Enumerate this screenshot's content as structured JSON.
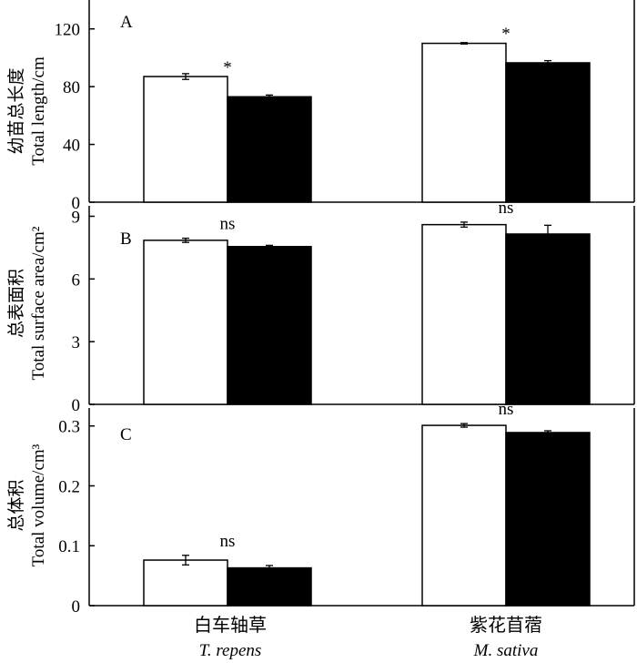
{
  "chart_data": [
    {
      "panel": "A",
      "type": "bar",
      "ylabel_cn": "幼苗总长度",
      "ylabel_en": "Total length/cm",
      "ylim": [
        0,
        140
      ],
      "yticks": [
        0,
        40,
        80,
        120
      ],
      "ytick_labels": [
        "0",
        "40",
        "80",
        "120"
      ],
      "categories": [
        "白车轴草",
        "紫花苜蓿"
      ],
      "series": [
        {
          "color": "#ffffff",
          "values": [
            87,
            110
          ],
          "errors": [
            2.0,
            0.5
          ]
        },
        {
          "color": "#000000",
          "values": [
            73,
            96.5
          ],
          "errors": [
            1.2,
            1.5
          ]
        }
      ],
      "annotations": [
        "*",
        "*"
      ]
    },
    {
      "panel": "B",
      "type": "bar",
      "ylabel_cn": "总表面积",
      "ylabel_en": "Total surface area/cm²",
      "ylim": [
        0,
        9.5
      ],
      "yticks": [
        0,
        3,
        6,
        9
      ],
      "ytick_labels": [
        "0",
        "3",
        "6",
        "9"
      ],
      "categories": [
        "白车轴草",
        "紫花苜蓿"
      ],
      "series": [
        {
          "color": "#ffffff",
          "values": [
            7.85,
            8.6
          ],
          "errors": [
            0.1,
            0.12
          ]
        },
        {
          "color": "#000000",
          "values": [
            7.55,
            8.15
          ],
          "errors": [
            0.06,
            0.42
          ]
        }
      ],
      "annotations": [
        "ns",
        "ns"
      ]
    },
    {
      "panel": "C",
      "type": "bar",
      "ylabel_cn": "总体积",
      "ylabel_en": "Total volume/cm³",
      "ylim": [
        0,
        0.33
      ],
      "yticks": [
        0,
        0.1,
        0.2,
        0.3
      ],
      "ytick_labels": [
        "0",
        "0.1",
        "0.2",
        "0.3"
      ],
      "categories": [
        "白车轴草",
        "紫花苜蓿"
      ],
      "series": [
        {
          "color": "#ffffff",
          "values": [
            0.076,
            0.301
          ],
          "errors": [
            0.008,
            0.003
          ]
        },
        {
          "color": "#000000",
          "values": [
            0.063,
            0.289
          ],
          "errors": [
            0.004,
            0.003
          ]
        }
      ],
      "annotations": [
        "ns",
        "ns"
      ]
    }
  ],
  "x_categories": [
    {
      "cn": "白车轴草",
      "latin": "T. repens"
    },
    {
      "cn": "紫花苜蓿",
      "latin": "M. sativa"
    }
  ]
}
